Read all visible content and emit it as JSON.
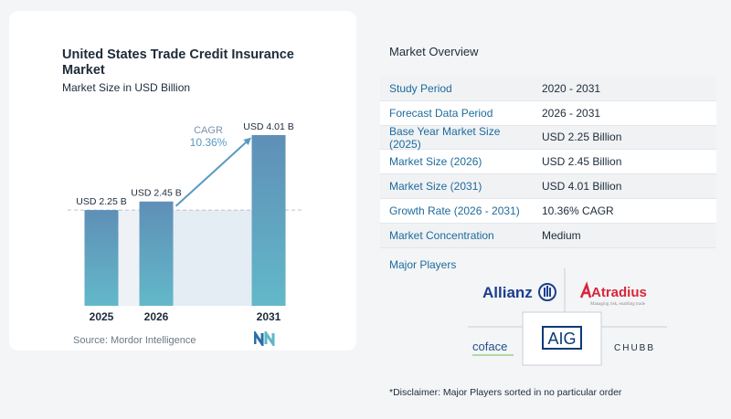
{
  "chart": {
    "title": "United States Trade Credit Insurance Market",
    "subtitle": "Market Size in USD Billion",
    "cagr_label": "CAGR",
    "cagr_value": "10.36%",
    "source": "Source: Mordor Intelligence"
  },
  "chart_data": {
    "type": "bar",
    "categories": [
      "2025",
      "2026",
      "2031"
    ],
    "values": [
      2.25,
      2.45,
      4.01
    ],
    "value_labels": [
      "USD 2.25 B",
      "USD 2.45 B",
      "USD 4.01 B"
    ],
    "title": "United States Trade Credit Insurance Market",
    "subtitle": "Market Size in USD Billion",
    "annotation": "CAGR 10.36%",
    "ylim": [
      0,
      4.01
    ],
    "grid": false,
    "colors": {
      "bar_top": "#5f8fb7",
      "bar_bottom": "#63b8c9",
      "arrow": "#5a9ac2",
      "shade": "#e4ecf4"
    }
  },
  "overview": {
    "title": "Market Overview",
    "rows": [
      {
        "label": "Study Period",
        "value": "2020 - 2031"
      },
      {
        "label": "Forecast Data Period",
        "value": "2026 - 2031"
      },
      {
        "label": "Base Year Market Size (2025)",
        "value": "USD 2.25 Billion"
      },
      {
        "label": "Market Size (2026)",
        "value": "USD 2.45 Billion"
      },
      {
        "label": "Market Size (2031)",
        "value": "USD 4.01 Billion"
      },
      {
        "label": "Growth Rate (2026 - 2031)",
        "value": "10.36% CAGR"
      },
      {
        "label": "Market Concentration",
        "value": "Medium"
      }
    ]
  },
  "players": {
    "title": "Major Players",
    "logos": [
      "Allianz",
      "Atradius",
      "coface",
      "AIG",
      "CHUBB"
    ],
    "atradius_tagline": "Managing risk, enabling trade"
  },
  "disclaimer": "*Disclaimer: Major Players sorted in no particular order"
}
